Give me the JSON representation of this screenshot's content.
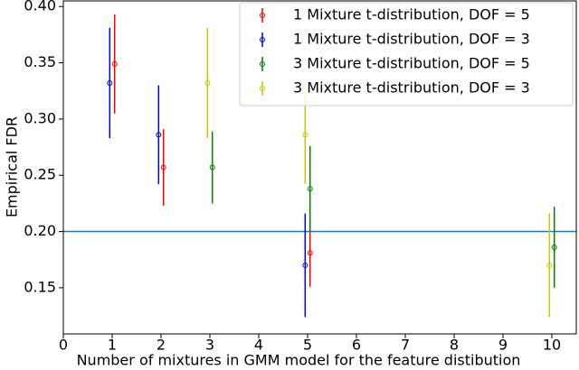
{
  "chart_data": {
    "type": "errorbar",
    "xlabel": "Number of mixtures in GMM model for the feature distibution",
    "ylabel": "Empirical FDR",
    "xlim": [
      0,
      10.5
    ],
    "ylim": [
      0.109,
      0.405
    ],
    "xticks": [
      0,
      1,
      2,
      3,
      4,
      5,
      6,
      7,
      8,
      9,
      10
    ],
    "yticks": [
      {
        "value": 0.15,
        "label": "0.15"
      },
      {
        "value": 0.2,
        "label": "0.20"
      },
      {
        "value": 0.25,
        "label": "0.25"
      },
      {
        "value": 0.3,
        "label": "0.30"
      },
      {
        "value": 0.35,
        "label": "0.35"
      },
      {
        "value": 0.4,
        "label": "0.40"
      }
    ],
    "hline": 0.2,
    "hline_color": "#1f77b4",
    "legend": "upper right",
    "series": [
      {
        "name": "1 Mixture t-distribution, DOF = 5",
        "color": "red",
        "x": [
          1.05,
          2.05,
          5.05
        ],
        "values": [
          0.349,
          0.257,
          0.181
        ],
        "errors": [
          0.044,
          0.034,
          0.03
        ]
      },
      {
        "name": "1 Mixture t-distribution, DOF = 3",
        "color": "blue",
        "x": [
          0.95,
          1.95,
          4.95
        ],
        "values": [
          0.332,
          0.286,
          0.17
        ],
        "errors": [
          0.049,
          0.044,
          0.046
        ]
      },
      {
        "name": "3 Mixture t-distribution, DOF = 5",
        "color": "green",
        "x": [
          3.05,
          5.05,
          10.05
        ],
        "values": [
          0.257,
          0.238,
          0.186
        ],
        "errors": [
          0.032,
          0.038,
          0.036
        ]
      },
      {
        "name": "3 Mixture t-distribution, DOF = 3",
        "color": "#c8c800",
        "x": [
          2.95,
          4.95,
          9.95
        ],
        "values": [
          0.332,
          0.286,
          0.17
        ],
        "errors": [
          0.049,
          0.044,
          0.046
        ]
      }
    ]
  }
}
